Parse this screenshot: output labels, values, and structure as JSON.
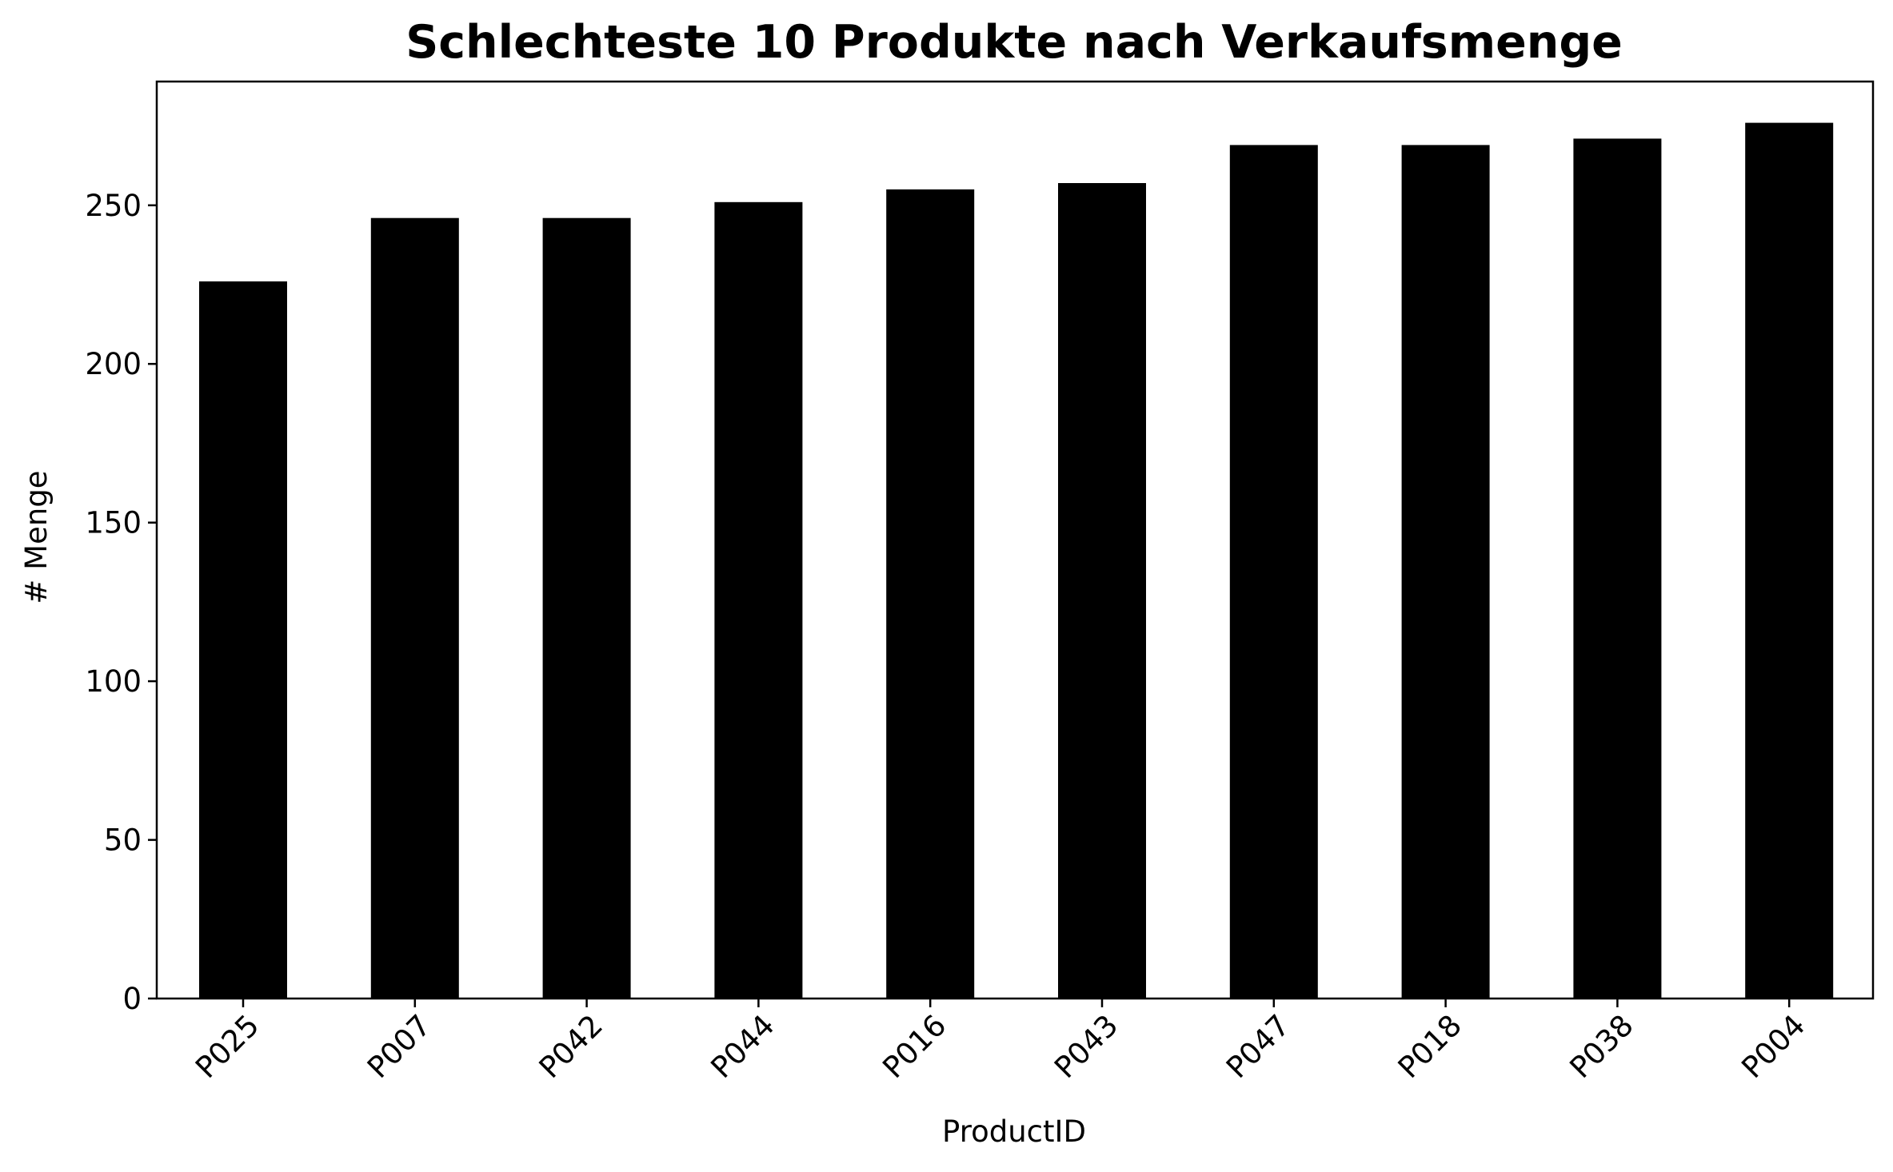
{
  "chart_data": {
    "type": "bar",
    "title": "Schlechteste 10 Produkte nach Verkaufsmenge",
    "xlabel": "ProductID",
    "ylabel": "# Menge",
    "categories": [
      "P025",
      "P007",
      "P042",
      "P044",
      "P016",
      "P043",
      "P047",
      "P018",
      "P038",
      "P004"
    ],
    "values": [
      226,
      246,
      246,
      251,
      255,
      257,
      269,
      269,
      271,
      276
    ],
    "ylim": [
      0,
      289
    ],
    "yticks": [
      0,
      50,
      100,
      150,
      200,
      250
    ],
    "ytick_labels": [
      "0",
      "50",
      "100",
      "150",
      "200",
      "250"
    ],
    "grid": false,
    "legend": "none",
    "bar_color": "#000000"
  }
}
